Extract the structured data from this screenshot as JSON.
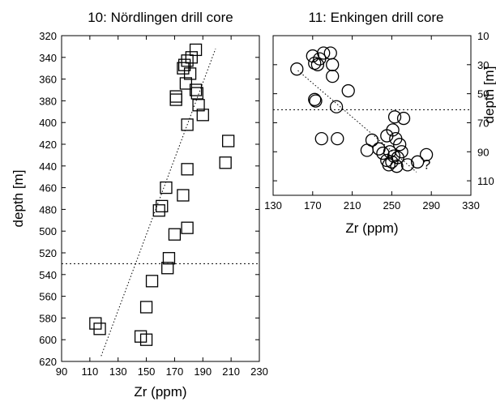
{
  "chart_data": [
    {
      "type": "scatter",
      "title": "10: Nördlingen drill core",
      "xlabel": "Zr (ppm)",
      "ylabel": "depth [m]",
      "xlim": [
        90,
        230
      ],
      "ylim": [
        620,
        320
      ],
      "xticks": [
        90,
        110,
        130,
        150,
        170,
        190,
        210,
        230
      ],
      "yticks": [
        320,
        340,
        360,
        380,
        400,
        420,
        440,
        460,
        480,
        500,
        520,
        540,
        560,
        580,
        600,
        620
      ],
      "marker": "square",
      "grid": false,
      "points": [
        {
          "x": 185,
          "y": 333
        },
        {
          "x": 182,
          "y": 340
        },
        {
          "x": 179,
          "y": 343
        },
        {
          "x": 177,
          "y": 347
        },
        {
          "x": 176,
          "y": 350
        },
        {
          "x": 181,
          "y": 355
        },
        {
          "x": 178,
          "y": 364
        },
        {
          "x": 185,
          "y": 370
        },
        {
          "x": 186,
          "y": 373
        },
        {
          "x": 171,
          "y": 376
        },
        {
          "x": 171,
          "y": 379
        },
        {
          "x": 187,
          "y": 384
        },
        {
          "x": 190,
          "y": 393
        },
        {
          "x": 179,
          "y": 402
        },
        {
          "x": 208,
          "y": 417
        },
        {
          "x": 206,
          "y": 437
        },
        {
          "x": 179,
          "y": 443
        },
        {
          "x": 164,
          "y": 460
        },
        {
          "x": 176,
          "y": 467
        },
        {
          "x": 161,
          "y": 477
        },
        {
          "x": 159,
          "y": 481
        },
        {
          "x": 179,
          "y": 497
        },
        {
          "x": 170,
          "y": 503
        },
        {
          "x": 166,
          "y": 525
        },
        {
          "x": 165,
          "y": 534
        },
        {
          "x": 154,
          "y": 546
        },
        {
          "x": 150,
          "y": 570
        },
        {
          "x": 114,
          "y": 585
        },
        {
          "x": 117,
          "y": 590
        },
        {
          "x": 146,
          "y": 597
        },
        {
          "x": 150,
          "y": 600
        }
      ],
      "trendline": {
        "x1": 118,
        "y1": 615,
        "x2": 199,
        "y2": 332
      },
      "reference_line_depth": 530
    },
    {
      "type": "scatter",
      "title": "11: Enkingen drill core",
      "xlabel": "Zr (ppm)",
      "ylabel": "depth [m]",
      "xlim": [
        130,
        330
      ],
      "ylim": [
        120,
        10
      ],
      "xticks": [
        130,
        170,
        210,
        250,
        290,
        330
      ],
      "yticks": [
        10,
        30,
        50,
        70,
        90,
        110
      ],
      "y_axis_side": "right",
      "marker": "circle",
      "grid": false,
      "points": [
        {
          "x": 154,
          "y": 33
        },
        {
          "x": 170,
          "y": 24
        },
        {
          "x": 177,
          "y": 26
        },
        {
          "x": 181,
          "y": 22
        },
        {
          "x": 188,
          "y": 22
        },
        {
          "x": 172,
          "y": 29
        },
        {
          "x": 175,
          "y": 30
        },
        {
          "x": 190,
          "y": 30
        },
        {
          "x": 190,
          "y": 38
        },
        {
          "x": 172,
          "y": 54
        },
        {
          "x": 173,
          "y": 55
        },
        {
          "x": 206,
          "y": 48
        },
        {
          "x": 194,
          "y": 59
        },
        {
          "x": 253,
          "y": 66
        },
        {
          "x": 262,
          "y": 67
        },
        {
          "x": 251,
          "y": 75
        },
        {
          "x": 245,
          "y": 79
        },
        {
          "x": 230,
          "y": 82
        },
        {
          "x": 254,
          "y": 81
        },
        {
          "x": 258,
          "y": 85
        },
        {
          "x": 225,
          "y": 89
        },
        {
          "x": 237,
          "y": 88
        },
        {
          "x": 241,
          "y": 91
        },
        {
          "x": 248,
          "y": 90
        },
        {
          "x": 260,
          "y": 90
        },
        {
          "x": 252,
          "y": 93
        },
        {
          "x": 256,
          "y": 94
        },
        {
          "x": 285,
          "y": 92
        },
        {
          "x": 276,
          "y": 97
        },
        {
          "x": 266,
          "y": 99
        },
        {
          "x": 245,
          "y": 96
        },
        {
          "x": 250,
          "y": 97
        },
        {
          "x": 247,
          "y": 99
        },
        {
          "x": 255,
          "y": 100
        },
        {
          "x": 179,
          "y": 81
        },
        {
          "x": 195,
          "y": 81
        }
      ],
      "trendline": {
        "x1": 155,
        "y1": 34,
        "x2": 275,
        "y2": 104
      },
      "reference_line_depth": 61,
      "annotation": "?"
    }
  ]
}
